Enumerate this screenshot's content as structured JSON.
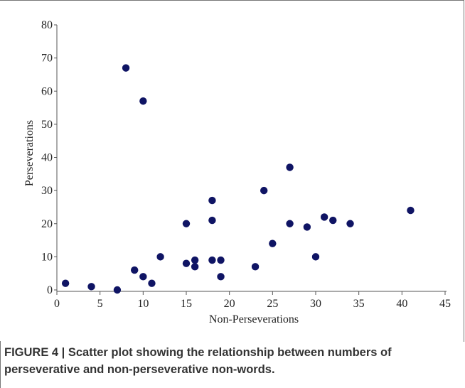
{
  "caption": {
    "text": "FIGURE 4 | Scatter plot showing the relationship between numbers of perseverative and non-perseverative non-words."
  },
  "chart_data": {
    "type": "scatter",
    "xlabel": "Non-Perseverations",
    "ylabel": "Perseverations",
    "xlim": [
      0,
      45
    ],
    "ylim": [
      0,
      80
    ],
    "x_ticks": [
      0,
      5,
      10,
      15,
      20,
      25,
      30,
      35,
      40,
      45
    ],
    "y_ticks": [
      0,
      10,
      20,
      30,
      40,
      50,
      60,
      70,
      80
    ],
    "grid": false,
    "color": "#0f1464",
    "points": [
      {
        "x": 1,
        "y": 2
      },
      {
        "x": 4,
        "y": 1
      },
      {
        "x": 7,
        "y": 0
      },
      {
        "x": 8,
        "y": 67
      },
      {
        "x": 9,
        "y": 6
      },
      {
        "x": 10,
        "y": 57
      },
      {
        "x": 10,
        "y": 4
      },
      {
        "x": 11,
        "y": 2
      },
      {
        "x": 12,
        "y": 10
      },
      {
        "x": 15,
        "y": 20
      },
      {
        "x": 15,
        "y": 8
      },
      {
        "x": 16,
        "y": 9
      },
      {
        "x": 16,
        "y": 7
      },
      {
        "x": 18,
        "y": 27
      },
      {
        "x": 18,
        "y": 21
      },
      {
        "x": 18,
        "y": 9
      },
      {
        "x": 19,
        "y": 9
      },
      {
        "x": 19,
        "y": 4
      },
      {
        "x": 23,
        "y": 7
      },
      {
        "x": 24,
        "y": 30
      },
      {
        "x": 25,
        "y": 14
      },
      {
        "x": 27,
        "y": 37
      },
      {
        "x": 27,
        "y": 20
      },
      {
        "x": 29,
        "y": 19
      },
      {
        "x": 30,
        "y": 10
      },
      {
        "x": 31,
        "y": 22
      },
      {
        "x": 32,
        "y": 21
      },
      {
        "x": 34,
        "y": 20
      },
      {
        "x": 41,
        "y": 24
      }
    ]
  }
}
